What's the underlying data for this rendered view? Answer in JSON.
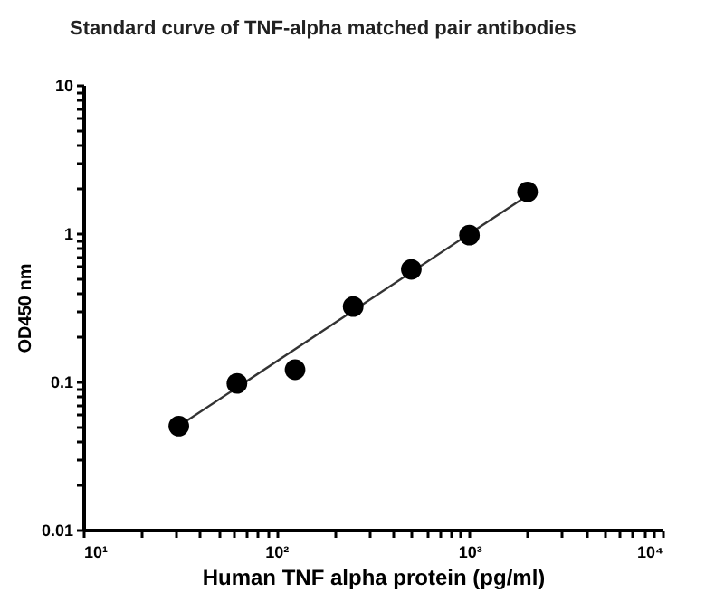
{
  "chart_data": {
    "type": "scatter",
    "title": "Standard curve of  TNF-alpha matched pair antibodies",
    "xlabel": "Human TNF alpha protein (pg/ml)",
    "ylabel": "OD450 nm",
    "log": "xy",
    "grid": false,
    "xlim": [
      10,
      10000
    ],
    "ylim": [
      0.01,
      10
    ],
    "xticks": [
      {
        "value": 10,
        "label": "10¹"
      },
      {
        "value": 20,
        "label": null
      },
      {
        "value": 30,
        "label": null
      },
      {
        "value": 40,
        "label": null
      },
      {
        "value": 50,
        "label": null
      },
      {
        "value": 60,
        "label": null
      },
      {
        "value": 70,
        "label": null
      },
      {
        "value": 80,
        "label": null
      },
      {
        "value": 90,
        "label": null
      },
      {
        "value": 100,
        "label": "10²"
      },
      {
        "value": 200,
        "label": null
      },
      {
        "value": 300,
        "label": null
      },
      {
        "value": 400,
        "label": null
      },
      {
        "value": 500,
        "label": null
      },
      {
        "value": 600,
        "label": null
      },
      {
        "value": 700,
        "label": null
      },
      {
        "value": 800,
        "label": null
      },
      {
        "value": 900,
        "label": null
      },
      {
        "value": 1000,
        "label": "10³"
      },
      {
        "value": 2000,
        "label": null
      },
      {
        "value": 3000,
        "label": null
      },
      {
        "value": 4000,
        "label": null
      },
      {
        "value": 5000,
        "label": null
      },
      {
        "value": 6000,
        "label": null
      },
      {
        "value": 7000,
        "label": null
      },
      {
        "value": 8000,
        "label": null
      },
      {
        "value": 9000,
        "label": null
      },
      {
        "value": 10000,
        "label": "10⁴"
      }
    ],
    "yticks": [
      0.01,
      {
        "value": 0.02,
        "label": null
      },
      {
        "value": 0.03,
        "label": null
      },
      {
        "value": 0.04,
        "label": null
      },
      {
        "value": 0.05,
        "label": null
      },
      {
        "value": 0.06,
        "label": null
      },
      {
        "value": 0.07,
        "label": null
      },
      {
        "value": 0.08,
        "label": null
      },
      {
        "value": 0.09,
        "label": null
      },
      0.1,
      {
        "value": 0.2,
        "label": null
      },
      {
        "value": 0.3,
        "label": null
      },
      {
        "value": 0.4,
        "label": null
      },
      {
        "value": 0.5,
        "label": null
      },
      {
        "value": 0.6,
        "label": null
      },
      {
        "value": 0.7,
        "label": null
      },
      {
        "value": 0.8,
        "label": null
      },
      {
        "value": 0.9,
        "label": null
      },
      1,
      {
        "value": 2,
        "label": null
      },
      {
        "value": 3,
        "label": null
      },
      {
        "value": 4,
        "label": null
      },
      {
        "value": 5,
        "label": null
      },
      {
        "value": 6,
        "label": null
      },
      {
        "value": 7,
        "label": null
      },
      {
        "value": 8,
        "label": null
      },
      {
        "value": 9,
        "label": null
      },
      10
    ],
    "series": [
      {
        "type": "line",
        "color": "#333333",
        "x": [
          31.25,
          2000
        ],
        "values": [
          0.05,
          1.8
        ]
      },
      {
        "marker": "circle",
        "color": "#000000",
        "x": [
          31.25,
          62.5,
          125,
          250,
          500,
          1000,
          2000
        ],
        "values": [
          0.05,
          0.097,
          0.12,
          0.32,
          0.57,
          0.97,
          1.9
        ]
      }
    ]
  }
}
